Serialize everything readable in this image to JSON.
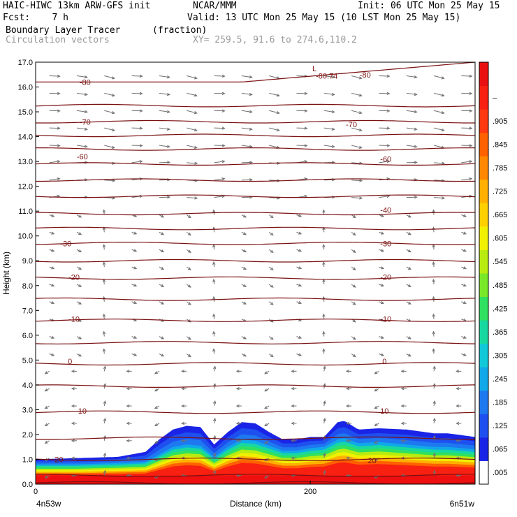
{
  "header": {
    "model": "HAIC-HIWC 13km ARW-GFS init",
    "org": "NCAR/MMM",
    "init": "Init: 06 UTC Mon 25 May 15",
    "fcst": "Fcst:    7 h",
    "valid": "Valid: 13 UTC Mon 25 May 15 (10 LST Mon 25 May 15)",
    "field": "Boundary Layer Tracer",
    "units": "(fraction)",
    "vectors": "Circulation vectors",
    "xy": "XY= 259.5, 91.6 to 274.6,110.2"
  },
  "chart_data": {
    "type": "heatmap",
    "title": "Boundary Layer Tracer",
    "xlabel": "Distance (km)",
    "ylabel": "Height (km)",
    "xlim": [
      0,
      320
    ],
    "ylim": [
      0,
      17
    ],
    "x_ticks": [
      {
        "value": 0,
        "label": "0"
      },
      {
        "value": 200,
        "label": "200"
      }
    ],
    "x_end_labels": {
      "left": "4n53w",
      "right": "6n51w"
    },
    "y_ticks": [
      "0.0",
      "1.0",
      "2.0",
      "3.0",
      "4.0",
      "5.0",
      "6.0",
      "7.0",
      "8.0",
      "9.0",
      "10.0",
      "11.0",
      "12.0",
      "13.0",
      "14.0",
      "15.0",
      "16.0",
      "17.0"
    ],
    "colorbar": {
      "labels": [
        ".005",
        ".065",
        ".125",
        ".185",
        ".245",
        ".305",
        ".365",
        ".425",
        ".485",
        ".545",
        ".605",
        ".665",
        ".725",
        ".785",
        ".845",
        ".905",
        "–"
      ],
      "colors": [
        "#ffffff",
        "#1a24e6",
        "#1e50f0",
        "#1e78f0",
        "#10a8e8",
        "#10c8d8",
        "#18d8a0",
        "#30e060",
        "#78e828",
        "#b8ec10",
        "#f0f000",
        "#ffd000",
        "#ffb000",
        "#ff8800",
        "#ff6000",
        "#ff3810",
        "#f82010",
        "#e81010"
      ]
    },
    "tracer_boundary": {
      "x": [
        0,
        30,
        60,
        80,
        90,
        100,
        110,
        120,
        130,
        140,
        150,
        160,
        170,
        180,
        190,
        200,
        210,
        220,
        225,
        235,
        250,
        270,
        290,
        300,
        320
      ],
      "top_km": [
        1.0,
        1.05,
        1.1,
        1.3,
        1.8,
        2.2,
        2.35,
        2.3,
        1.6,
        2.1,
        2.5,
        2.45,
        2.1,
        1.8,
        1.8,
        1.9,
        1.9,
        2.5,
        2.55,
        2.2,
        2.25,
        2.2,
        2.05,
        2.05,
        1.9
      ],
      "core_top_km": [
        0.8,
        0.8,
        0.85,
        0.9,
        1.2,
        1.5,
        1.6,
        1.55,
        1.1,
        1.5,
        1.8,
        1.75,
        1.55,
        1.35,
        1.35,
        1.45,
        1.5,
        1.8,
        1.85,
        1.65,
        1.7,
        1.6,
        1.5,
        1.5,
        1.4
      ]
    },
    "contours": {
      "levels_km": [
        0.05,
        0.35,
        1.0,
        1.85,
        2.9,
        3.95,
        4.85,
        5.7,
        6.6,
        7.45,
        8.3,
        9.0,
        9.7,
        10.3,
        10.9,
        11.6,
        12.25,
        12.9,
        13.5,
        14.05,
        14.6,
        15.25,
        16.2
      ],
      "labels": [
        {
          "text": "20",
          "x": 17,
          "y": 1.0
        },
        {
          "text": "20",
          "x": 245,
          "y": 0.95
        },
        {
          "text": "10",
          "x": 34,
          "y": 2.95
        },
        {
          "text": "10",
          "x": 254,
          "y": 2.95
        },
        {
          "text": "0",
          "x": 25,
          "y": 4.95
        },
        {
          "text": "0",
          "x": 254,
          "y": 4.95
        },
        {
          "text": "-10",
          "x": 28,
          "y": 6.65
        },
        {
          "text": "-10",
          "x": 255,
          "y": 6.65
        },
        {
          "text": "-20",
          "x": 28,
          "y": 8.35
        },
        {
          "text": "-20",
          "x": 255,
          "y": 8.35
        },
        {
          "text": "-30",
          "x": 22,
          "y": 9.7
        },
        {
          "text": "-30",
          "x": 255,
          "y": 9.7
        },
        {
          "text": "-40",
          "x": 255,
          "y": 11.05
        },
        {
          "text": "-60",
          "x": 34,
          "y": 13.2
        },
        {
          "text": "-60",
          "x": 255,
          "y": 13.1
        },
        {
          "text": "-70",
          "x": 36,
          "y": 14.6
        },
        {
          "text": "-70",
          "x": 230,
          "y": 14.5
        },
        {
          "text": "-80",
          "x": 36,
          "y": 16.2
        },
        {
          "text": "-80.74",
          "x": 212,
          "y": 16.45
        },
        {
          "text": "-80",
          "x": 240,
          "y": 16.5
        },
        {
          "text": "L",
          "x": 203,
          "y": 16.75
        }
      ]
    },
    "vectors": {
      "columns_km": [
        10,
        30,
        50,
        70,
        90,
        110,
        130,
        150,
        170,
        190,
        210,
        230,
        250,
        270,
        290,
        310
      ],
      "rows_km": [
        0.35,
        1.05,
        1.75,
        2.45,
        3.15,
        3.85,
        4.55,
        5.25,
        5.95,
        6.65,
        7.35,
        8.05,
        8.75,
        9.45,
        10.15,
        10.85,
        11.55,
        12.25,
        12.95,
        13.65,
        14.35,
        15.05,
        15.75,
        16.45
      ]
    }
  }
}
